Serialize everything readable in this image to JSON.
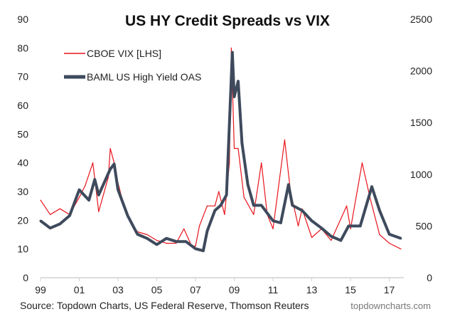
{
  "chart_data": {
    "type": "line",
    "title": "US HY Credit Spreads vs VIX",
    "source": "Source: Topdown Charts, US Federal Reserve, Thomson Reuters",
    "watermark": "topdowncharts.com",
    "x_tick_labels": [
      "99",
      "01",
      "03",
      "05",
      "07",
      "09",
      "11",
      "13",
      "15",
      "17"
    ],
    "x_ticks": [
      1999,
      2001,
      2003,
      2005,
      2007,
      2009,
      2011,
      2013,
      2015,
      2017
    ],
    "xlim": [
      1999,
      2017.75
    ],
    "y_left": {
      "ylim": [
        0,
        90
      ],
      "ticks": [
        "0",
        "10",
        "20",
        "30",
        "40",
        "50",
        "60",
        "70",
        "80",
        "90"
      ]
    },
    "y_right": {
      "ylim": [
        0,
        2500
      ],
      "ticks": [
        "0",
        "500",
        "1000",
        "1500",
        "2000",
        "2500"
      ]
    },
    "grid": false,
    "legend_placement": "top-left",
    "series": [
      {
        "name": "CBOE VIX [LHS]",
        "axis": "left",
        "color": "#e8141c",
        "x": [
          1999.0,
          1999.5,
          2000.0,
          2000.5,
          2001.0,
          2001.3,
          2001.7,
          2002.0,
          2002.5,
          2002.6,
          2002.8,
          2003.0,
          2003.3,
          2003.6,
          2004.0,
          2004.5,
          2005.0,
          2005.5,
          2006.0,
          2006.4,
          2006.8,
          2007.0,
          2007.2,
          2007.6,
          2008.0,
          2008.2,
          2008.5,
          2008.75,
          2008.85,
          2009.0,
          2009.2,
          2009.5,
          2010.0,
          2010.4,
          2010.7,
          2011.0,
          2011.6,
          2011.9,
          2012.3,
          2012.5,
          2013.0,
          2013.5,
          2014.0,
          2014.8,
          2015.0,
          2015.6,
          2016.0,
          2016.5,
          2017.0,
          2017.6
        ],
        "values": [
          27,
          22,
          24,
          22,
          28,
          32,
          40,
          23,
          35,
          45,
          40,
          33,
          25,
          20,
          16,
          15,
          13,
          12,
          12,
          17,
          11,
          11,
          18,
          25,
          25,
          30,
          22,
          40,
          80,
          45,
          45,
          28,
          22,
          40,
          22,
          17,
          48,
          30,
          18,
          24,
          14,
          17,
          13,
          25,
          17,
          40,
          28,
          15,
          12,
          10
        ]
      },
      {
        "name": "BAML US High Yield OAS",
        "axis": "right",
        "color": "#3e4a5c",
        "x": [
          1999.0,
          1999.5,
          2000.0,
          2000.5,
          2001.0,
          2001.5,
          2001.8,
          2002.0,
          2002.6,
          2002.8,
          2003.0,
          2003.5,
          2004.0,
          2004.5,
          2005.0,
          2005.5,
          2006.0,
          2006.5,
          2007.0,
          2007.4,
          2007.6,
          2008.0,
          2008.3,
          2008.6,
          2008.9,
          2009.0,
          2009.2,
          2009.4,
          2009.7,
          2010.0,
          2010.4,
          2011.0,
          2011.4,
          2011.8,
          2012.0,
          2012.5,
          2013.0,
          2013.5,
          2014.0,
          2014.5,
          2014.9,
          2015.5,
          2016.1,
          2016.5,
          2017.0,
          2017.6
        ],
        "values": [
          550,
          480,
          520,
          600,
          850,
          750,
          950,
          800,
          1050,
          1100,
          850,
          600,
          420,
          380,
          320,
          380,
          350,
          350,
          280,
          260,
          450,
          650,
          700,
          800,
          2180,
          1750,
          1900,
          1300,
          900,
          700,
          700,
          550,
          530,
          900,
          700,
          650,
          550,
          480,
          400,
          360,
          500,
          500,
          880,
          650,
          420,
          380
        ]
      }
    ]
  }
}
